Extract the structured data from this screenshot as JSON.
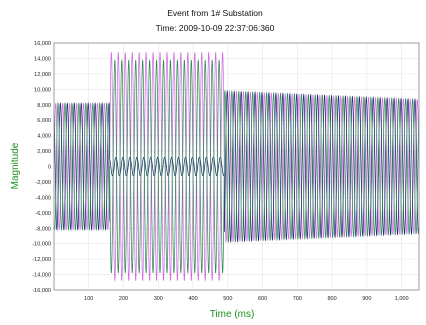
{
  "chart_data": {
    "type": "line",
    "title": "Event from 1# Substation",
    "subtitle": "Time: 2009-10-09 22:37:06:360",
    "xlabel": "Time (ms)",
    "ylabel": "Magnitude",
    "xlim": [
      0,
      1050
    ],
    "ylim": [
      -16000,
      16000
    ],
    "x_ticks": [
      100,
      200,
      300,
      400,
      500,
      600,
      700,
      800,
      900,
      1000
    ],
    "x_tick_labels": [
      "100",
      "200",
      "300",
      "400",
      "500",
      "600",
      "700",
      "800",
      "900",
      "1,000"
    ],
    "y_ticks": [
      16000,
      14000,
      12000,
      10000,
      8000,
      6000,
      4000,
      2000,
      0,
      -2000,
      -4000,
      -6000,
      -8000,
      -10000,
      -12000,
      -14000,
      -16000
    ],
    "y_tick_labels": [
      "16,000",
      "14,000",
      "12,000",
      "10,000",
      "8,000",
      "6,000",
      "4,000",
      "2,000",
      "0",
      "-2,000",
      "-4,000",
      "-6,000",
      "-8,000",
      "-10,000",
      "-12,000",
      "-14,000",
      "-16,000"
    ],
    "grid": true,
    "legend": "none",
    "colors": [
      "#d070e0",
      "#1e2a6e",
      "#2e8b57"
    ],
    "frequency_hz": 50,
    "series": [
      {
        "segments": [
          {
            "x_start": 0,
            "x_end": 160,
            "amplitude": 8200,
            "phase_deg": 0
          },
          {
            "x_start": 160,
            "x_end": 490,
            "amplitude": 14800,
            "phase_deg": 0
          },
          {
            "x_start": 490,
            "x_end": 1050,
            "amplitude": 9800,
            "amplitude_end": 8700,
            "phase_deg": 0
          }
        ]
      },
      {
        "segments": [
          {
            "x_start": 0,
            "x_end": 160,
            "amplitude": 8200,
            "phase_deg": 120
          },
          {
            "x_start": 160,
            "x_end": 490,
            "amplitude": 1200,
            "phase_deg": 120
          },
          {
            "x_start": 490,
            "x_end": 1050,
            "amplitude": 9800,
            "amplitude_end": 8700,
            "phase_deg": 120
          }
        ]
      },
      {
        "segments": [
          {
            "x_start": 0,
            "x_end": 160,
            "amplitude": 8200,
            "phase_deg": 240
          },
          {
            "x_start": 160,
            "x_end": 490,
            "amplitude": 13800,
            "phase_deg": 180
          },
          {
            "x_start": 490,
            "x_end": 1050,
            "amplitude": 9800,
            "amplitude_end": 8700,
            "phase_deg": 240
          }
        ]
      }
    ]
  }
}
